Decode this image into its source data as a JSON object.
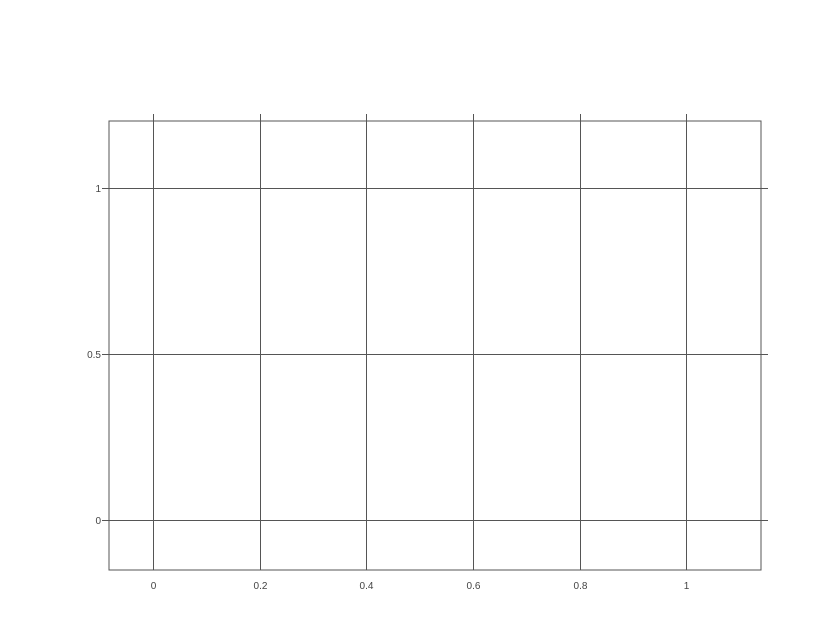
{
  "chart_data": {
    "type": "line",
    "title": "",
    "xlabel": "",
    "ylabel": "",
    "series": [],
    "xlim": [
      -0.083,
      1.14
    ],
    "ylim": [
      -0.15,
      1.2
    ],
    "x_ticks": [
      0,
      0.2,
      0.4,
      0.6,
      0.8,
      1
    ],
    "x_tick_labels": [
      "0",
      "0.2",
      "0.4",
      "0.6",
      "0.8",
      "1"
    ],
    "y_ticks": [
      0,
      0.5,
      1
    ],
    "y_tick_labels": [
      "0",
      "0.5",
      "1"
    ],
    "grid": true,
    "legend": "none",
    "colors": {
      "frame": "#555555",
      "grid": "#555555",
      "tick_label": "#444444",
      "background": "#ffffff"
    }
  }
}
